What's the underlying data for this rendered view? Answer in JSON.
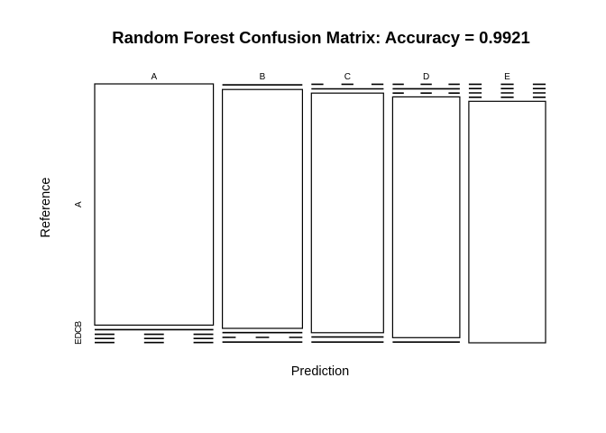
{
  "chart_data": {
    "type": "mosaic",
    "title": "Random Forest Confusion Matrix: Accuracy = 0.9921",
    "xlabel": "Prediction",
    "ylabel": "Reference",
    "x_categories": [
      "A",
      "B",
      "C",
      "D",
      "E"
    ],
    "y_categories": [
      "A",
      "B",
      "C",
      "D",
      "E"
    ],
    "y_tick_labels": [
      "A",
      "B",
      "C",
      "D",
      "E"
    ],
    "x_proportions": [
      0.286,
      0.193,
      0.174,
      0.162,
      0.185
    ],
    "cell_proportions": [
      [
        0.9867,
        0.0073,
        0.002,
        0.002,
        0.002
      ],
      [
        0.008,
        0.977,
        0.006,
        0.003,
        0.006
      ],
      [
        0.003,
        0.005,
        0.98,
        0.006,
        0.006
      ],
      [
        0.003,
        0.004,
        0.002,
        0.9849,
        0.0061
      ],
      [
        0.003,
        0.003,
        0.003,
        0.003,
        0.988
      ]
    ]
  }
}
